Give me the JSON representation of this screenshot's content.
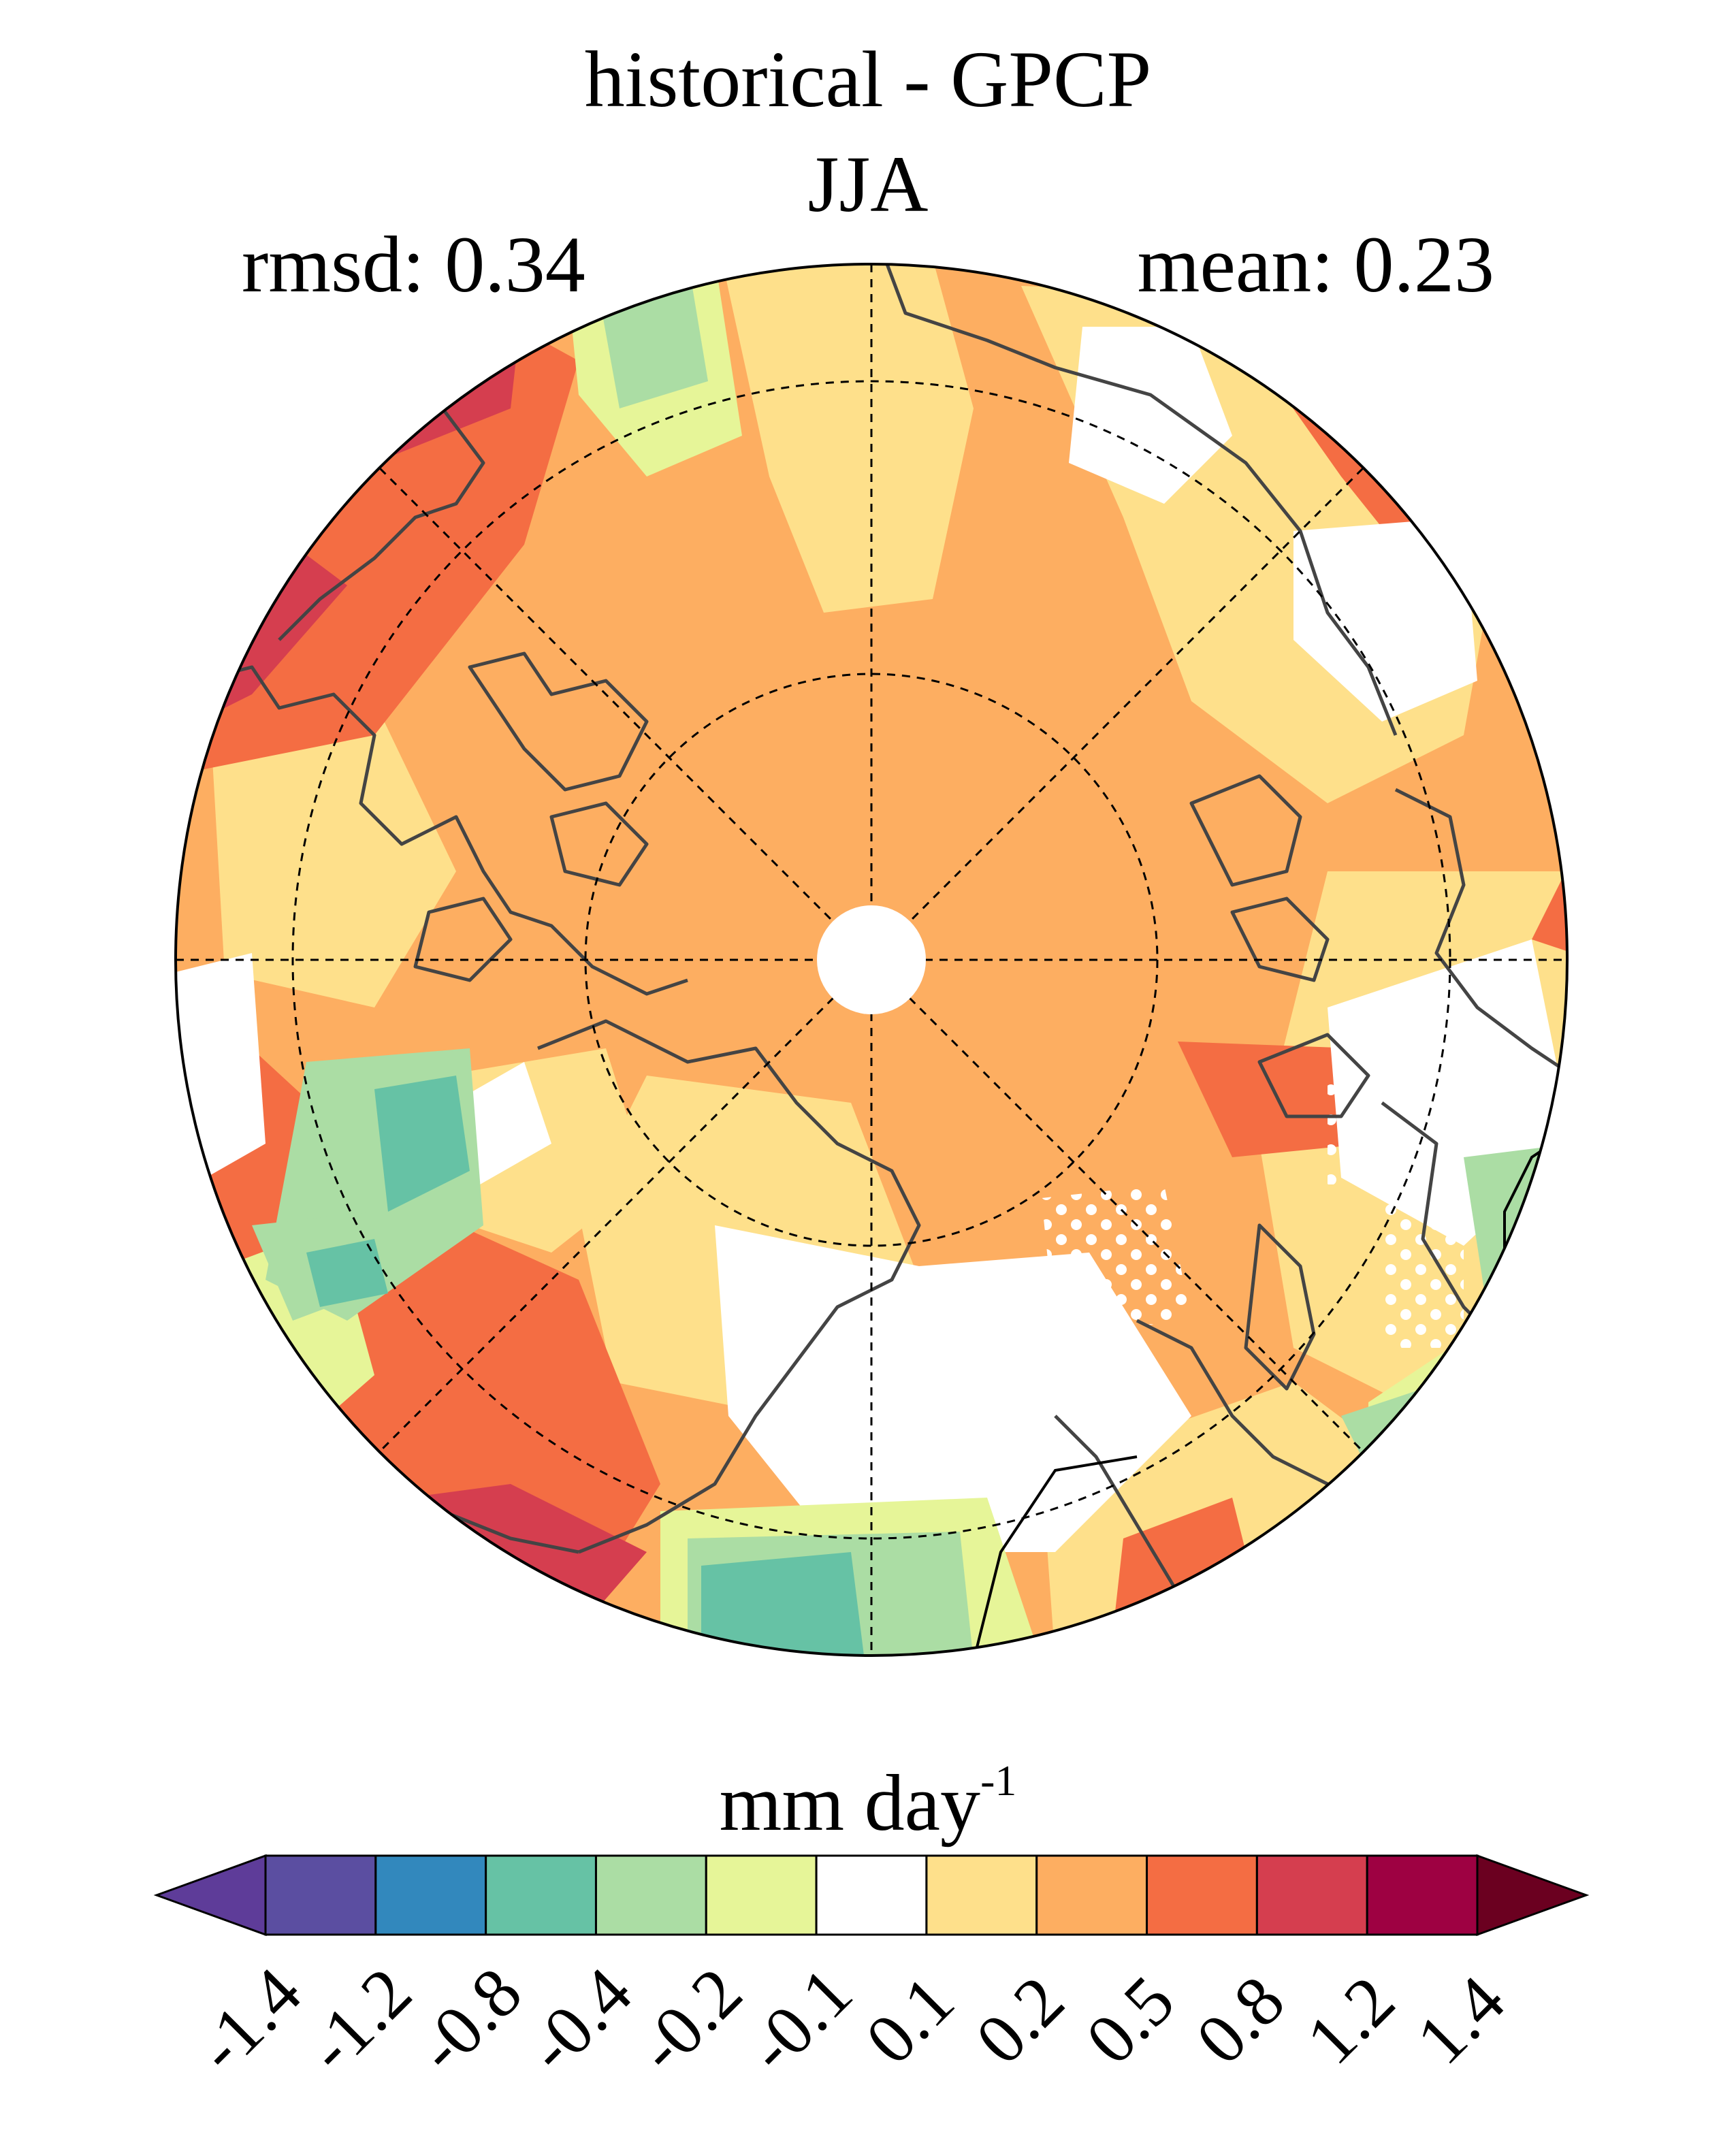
{
  "title": "historical - GPCP",
  "season": "JJA",
  "stats": {
    "rmsd_label": "rmsd: 0.34",
    "mean_label": "mean: 0.23"
  },
  "colorbar": {
    "units": "mm day",
    "units_exponent": "-1",
    "ticks": [
      "-1.4",
      "-1.2",
      "-0.8",
      "-0.4",
      "-0.2",
      "-0.1",
      "0.1",
      "0.2",
      "0.5",
      "0.8",
      "1.2",
      "1.4"
    ],
    "colors": [
      "#5e3c99",
      "#5b4ea1",
      "#3288bd",
      "#66c2a5",
      "#abdda4",
      "#e6f598",
      "#ffffff",
      "#fee08b",
      "#fdae61",
      "#f46d43",
      "#d53e4f",
      "#9e0142",
      "#6b0020"
    ]
  },
  "chart_data": {
    "type": "heatmap",
    "projection": "north polar stereographic",
    "variable": "precipitation bias",
    "field_colors": {
      "background": "#fdae61",
      "light_positive": "#fee08b",
      "strong_positive": "#f46d43",
      "very_strong": "#d53e4f",
      "extreme": "#9e0142",
      "neutral": "#ffffff",
      "slight_negative": "#e6f598",
      "negative": "#abdda4",
      "strong_negative": "#66c2a5"
    },
    "stippling": "dots over non-significant regions"
  }
}
